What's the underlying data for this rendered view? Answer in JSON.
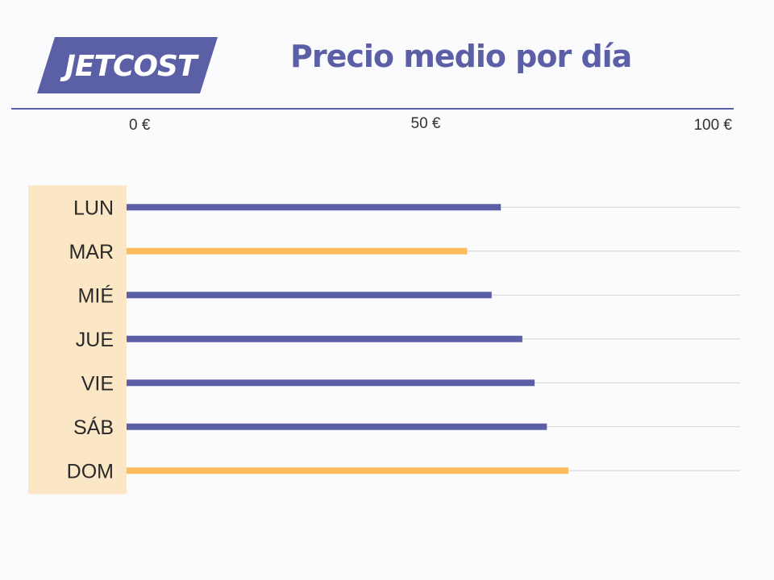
{
  "logo": {
    "text": "JETCOST"
  },
  "title": "Precio medio por día",
  "colors": {
    "brand": "#5b5fa6",
    "highlight": "#fbbb58",
    "label_panel": "#fbe6c6",
    "gridline": "#d3d3d3"
  },
  "chart_data": {
    "type": "bar",
    "orientation": "horizontal",
    "title": "Precio medio por día",
    "categories": [
      "LUN",
      "MAR",
      "MIÉ",
      "JUE",
      "VIE",
      "SÁB",
      "DOM"
    ],
    "values": [
      61,
      55.5,
      59.5,
      64.5,
      66.5,
      68.5,
      72
    ],
    "highlighted": [
      "MAR",
      "DOM"
    ],
    "xlim": [
      0,
      100
    ],
    "x_ticks": [
      0,
      50,
      100
    ],
    "x_tick_labels": [
      "0 €",
      "50 €",
      "100 €"
    ],
    "x_axis_position": "top",
    "grid": true,
    "legend": "none"
  }
}
